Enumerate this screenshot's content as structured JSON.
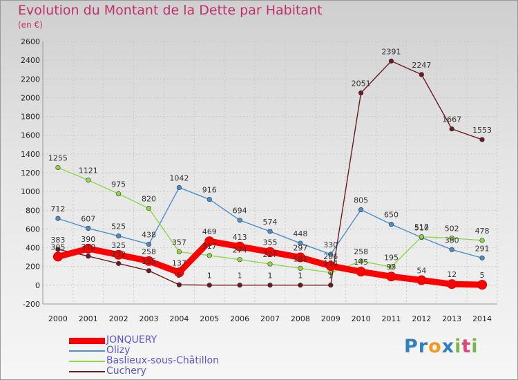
{
  "header": {
    "title": "Evolution du Montant de la Dette par Habitant",
    "subtitle": "(en €)"
  },
  "logo": {
    "letters": [
      "P",
      "r",
      "o",
      "x",
      "i",
      "t",
      "i"
    ],
    "colors": [
      "#2f7fc1",
      "#2f7fc1",
      "#f39a1e",
      "#2f7fc1",
      "#7ab648",
      "#e0457b",
      "#7ab648"
    ]
  },
  "chart_data": {
    "type": "line",
    "title": "Evolution du Montant de la Dette par Habitant",
    "subtitle": "(en €)",
    "xlabel": "",
    "ylabel": "",
    "x": [
      "2000",
      "2001",
      "2002",
      "2003",
      "2004",
      "2005",
      "2006",
      "2007",
      "2008",
      "2009",
      "2010",
      "2011",
      "2012",
      "2013",
      "2014"
    ],
    "ylim": [
      -200,
      2600
    ],
    "yticks": [
      -200,
      0,
      200,
      400,
      600,
      800,
      1000,
      1200,
      1400,
      1600,
      1800,
      2000,
      2200,
      2400,
      2600
    ],
    "grid": true,
    "legend_position": "bottom-left",
    "series": [
      {
        "name": "JONQUERY",
        "color": "#ff0000",
        "values": [
          305,
          390,
          325,
          258,
          137,
          469,
          413,
          355,
          297,
          206,
          145,
          93,
          54,
          12,
          5
        ]
      },
      {
        "name": "Olizy",
        "color": "#4a8fc8",
        "values": [
          712,
          607,
          525,
          438,
          1042,
          916,
          694,
          574,
          448,
          330,
          805,
          650,
          510,
          380,
          291
        ]
      },
      {
        "name": "Baslieux-sous-Châtillon",
        "color": "#8ed64a",
        "values": [
          1255,
          1121,
          975,
          820,
          357,
          317,
          274,
          227,
          181,
          134,
          258,
          195,
          517,
          502,
          478
        ]
      },
      {
        "name": "Cuchery",
        "color": "#6b1a22",
        "values": [
          383,
          310,
          232,
          155,
          5,
          1,
          1,
          1,
          1,
          1,
          2051,
          2391,
          2247,
          1667,
          1553
        ]
      }
    ]
  }
}
